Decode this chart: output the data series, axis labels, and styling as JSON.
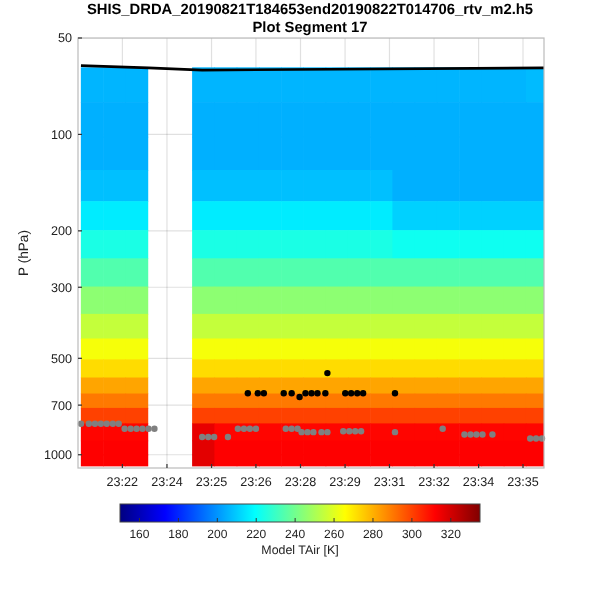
{
  "chart_data": {
    "type": "heatmap",
    "title": "SHIS_DRDA_20190821T184653end20190822T014706_rtv_m2.h5",
    "subtitle": "Plot Segment 17",
    "ylabel": "P (hPa)",
    "clabel": "Model TAir [K]",
    "log": "y",
    "grid": true,
    "xlim": [
      23.3442,
      23.5972
    ],
    "xticks": [
      {
        "value": 23.3683,
        "label": "23:22"
      },
      {
        "value": 23.3925,
        "label": "23:24"
      },
      {
        "value": 23.4167,
        "label": "23:25"
      },
      {
        "value": 23.4408,
        "label": "23:26"
      },
      {
        "value": 23.465,
        "label": "23:28"
      },
      {
        "value": 23.4892,
        "label": "23:29"
      },
      {
        "value": 23.5133,
        "label": "23:31"
      },
      {
        "value": 23.5375,
        "label": "23:32"
      },
      {
        "value": 23.5617,
        "label": "23:34"
      },
      {
        "value": 23.5858,
        "label": "23:35"
      }
    ],
    "ylim": [
      1100,
      50
    ],
    "yticks": [
      50,
      100,
      200,
      300,
      500,
      700,
      1000
    ],
    "clim": [
      150,
      335
    ],
    "cticks": [
      160,
      180,
      200,
      220,
      240,
      260,
      280,
      300,
      320
    ],
    "x": [
      23.3518,
      23.3639,
      23.376,
      23.388,
      23.4001,
      23.4122,
      23.4243,
      23.4364,
      23.4485,
      23.4605,
      23.4726,
      23.4847,
      23.4968,
      23.5089,
      23.5209,
      23.533,
      23.5451,
      23.5572,
      23.5693,
      23.5814,
      23.5934
    ],
    "y": [
      70,
      90,
      115,
      145,
      180,
      220,
      270,
      330,
      400,
      470,
      540,
      610,
      680,
      750,
      850,
      960,
      1040
    ],
    "cells": [
      [
        206,
        206,
        206,
        null,
        null,
        206,
        206,
        206,
        206,
        206,
        206,
        206,
        206,
        206,
        206,
        206,
        206,
        206,
        206,
        206,
        207
      ],
      [
        205,
        205,
        205,
        null,
        null,
        205,
        205,
        205,
        205,
        205,
        205,
        205,
        205,
        205,
        205,
        205,
        205,
        205,
        205,
        205,
        205
      ],
      [
        205,
        205,
        205,
        null,
        null,
        205,
        205,
        205,
        205,
        205,
        205,
        205,
        205,
        205,
        205,
        205,
        205,
        205,
        205,
        205,
        205
      ],
      [
        208,
        208,
        208,
        null,
        null,
        208,
        208,
        208,
        208,
        208,
        208,
        208,
        208,
        208,
        205,
        205,
        205,
        205,
        205,
        205,
        205
      ],
      [
        216,
        216,
        216,
        null,
        null,
        216,
        216,
        216,
        216,
        216,
        216,
        216,
        216,
        216,
        211,
        211,
        211,
        211,
        211,
        211,
        211
      ],
      [
        224,
        224,
        224,
        null,
        null,
        224,
        224,
        224,
        224,
        224,
        224,
        224,
        224,
        224,
        222,
        222,
        222,
        222,
        222,
        222,
        222
      ],
      [
        234,
        234,
        234,
        null,
        null,
        234,
        234,
        234,
        234,
        234,
        234,
        234,
        234,
        234,
        234,
        234,
        234,
        234,
        234,
        234,
        234
      ],
      [
        245,
        245,
        245,
        null,
        null,
        245,
        245,
        245,
        245,
        245,
        245,
        245,
        245,
        245,
        245,
        245,
        245,
        245,
        245,
        245,
        245
      ],
      [
        255,
        255,
        255,
        null,
        null,
        255,
        255,
        255,
        255,
        255,
        255,
        255,
        255,
        255,
        255,
        255,
        255,
        255,
        255,
        255,
        255
      ],
      [
        264,
        264,
        264,
        null,
        null,
        264,
        264,
        264,
        264,
        264,
        264,
        264,
        264,
        264,
        264,
        264,
        264,
        264,
        264,
        264,
        264
      ],
      [
        272,
        272,
        272,
        null,
        null,
        272,
        272,
        272,
        272,
        272,
        272,
        272,
        272,
        272,
        272,
        272,
        272,
        272,
        272,
        272,
        272
      ],
      [
        282,
        282,
        282,
        null,
        null,
        282,
        282,
        282,
        282,
        282,
        282,
        282,
        282,
        282,
        282,
        282,
        282,
        282,
        282,
        282,
        282
      ],
      [
        290,
        290,
        290,
        null,
        null,
        290,
        290,
        290,
        290,
        290,
        290,
        290,
        290,
        290,
        290,
        290,
        290,
        290,
        290,
        290,
        290
      ],
      [
        300,
        300,
        300,
        null,
        null,
        300,
        300,
        300,
        300,
        300,
        300,
        300,
        300,
        300,
        300,
        300,
        300,
        300,
        300,
        300,
        300
      ],
      [
        311,
        311,
        311,
        null,
        null,
        316,
        311,
        311,
        311,
        311,
        311,
        311,
        311,
        311,
        311,
        311,
        311,
        311,
        311,
        311,
        311
      ],
      [
        312,
        312,
        312,
        null,
        null,
        317,
        312,
        312,
        312,
        312,
        312,
        312,
        312,
        312,
        312,
        312,
        312,
        312,
        312,
        312,
        312
      ],
      [
        312,
        312,
        312,
        null,
        null,
        317,
        312,
        312,
        312,
        312,
        312,
        312,
        312,
        312,
        312,
        312,
        312,
        312,
        312,
        312,
        312
      ]
    ],
    "series": [
      {
        "type": "line",
        "color": "#000000",
        "marker": "none",
        "x": [
          23.3458,
          23.3825,
          23.4116,
          23.5972
        ],
        "values": [
          61,
          62,
          63,
          62
        ]
      },
      {
        "type": "scatter",
        "color": "#808080",
        "marker": "circle",
        "x": [
          23.3458,
          23.3501,
          23.3534,
          23.3566,
          23.3598,
          23.3631,
          23.3663,
          23.3695,
          23.3728,
          23.376,
          23.3792,
          23.3825,
          23.3857,
          23.4116,
          23.4149,
          23.4181,
          23.4256,
          23.431,
          23.4343,
          23.4375,
          23.4408,
          23.457,
          23.4602,
          23.4634,
          23.4656,
          23.4688,
          23.472,
          23.4764,
          23.4796,
          23.4882,
          23.4915,
          23.4947,
          23.4979,
          23.5163,
          23.5422,
          23.554,
          23.5573,
          23.5605,
          23.5638,
          23.5692,
          23.5897,
          23.5929,
          23.5961
        ],
        "values": [
          800,
          800,
          800,
          800,
          800,
          800,
          800,
          830,
          830,
          830,
          830,
          830,
          830,
          880,
          880,
          880,
          880,
          830,
          830,
          830,
          830,
          830,
          830,
          830,
          850,
          850,
          850,
          850,
          850,
          845,
          845,
          845,
          845,
          850,
          830,
          865,
          865,
          865,
          865,
          865,
          890,
          890,
          890
        ]
      },
      {
        "type": "scatter",
        "color": "#000000",
        "marker": "circle",
        "x": [
          23.4364,
          23.4418,
          23.4451,
          23.4559,
          23.4602,
          23.4645,
          23.4677,
          23.471,
          23.4742,
          23.4785,
          23.4796,
          23.4893,
          23.4925,
          23.4958,
          23.499,
          23.5163
        ],
        "values": [
          643,
          643,
          643,
          643,
          643,
          660,
          643,
          643,
          643,
          643,
          556,
          643,
          643,
          643,
          643,
          643
        ]
      }
    ]
  }
}
